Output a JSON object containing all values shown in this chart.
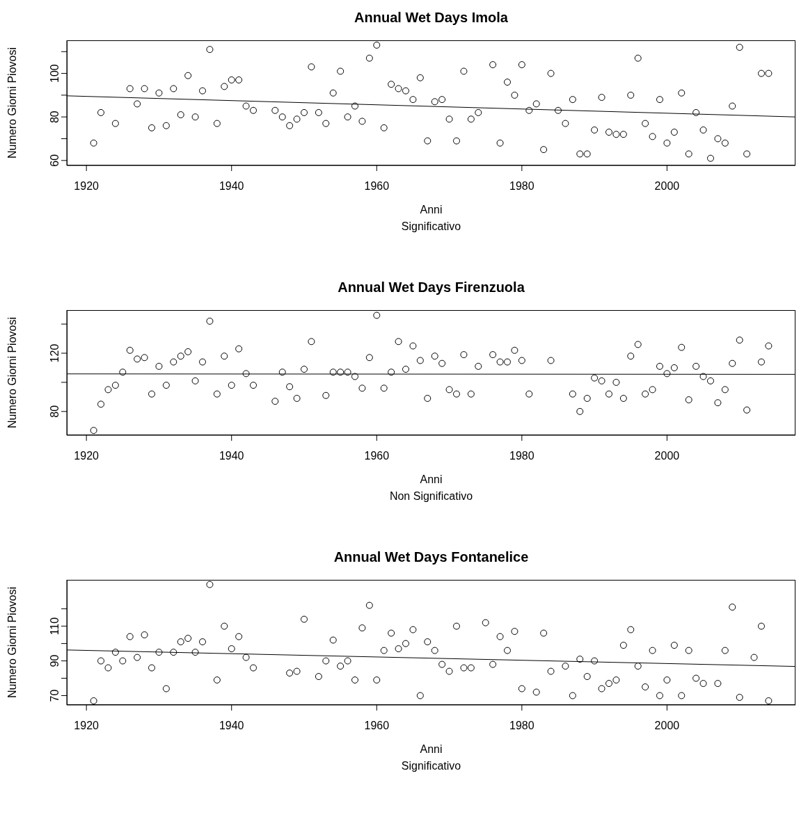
{
  "chart_data": [
    {
      "type": "scatter",
      "title": "Annual Wet Days Imola",
      "xlabel": "Anni",
      "subtitle": "Significativo",
      "ylabel": "Numero Giorni Piovosi",
      "xlim": [
        1917.3,
        2017.7
      ],
      "xticks": [
        1920,
        1940,
        1960,
        1980,
        2000
      ],
      "ylim": [
        57.7,
        115.2
      ],
      "yticks": [
        60,
        {
          "value": 70,
          "label": null
        },
        80,
        {
          "value": 90,
          "label": null
        },
        100,
        {
          "value": 110,
          "label": null
        }
      ],
      "series": [
        {
          "marker": "circle",
          "color": "#000000",
          "x": [
            1921,
            1922,
            1924,
            1926,
            1927,
            1928,
            1929,
            1930,
            1931,
            1932,
            1933,
            1934,
            1935,
            1936,
            1937,
            1938,
            1939,
            1940,
            1941,
            1942,
            1943,
            1946,
            1947,
            1948,
            1949,
            1950,
            1951,
            1952,
            1953,
            1954,
            1955,
            1956,
            1957,
            1958,
            1959,
            1960,
            1961,
            1962,
            1963,
            1964,
            1965,
            1966,
            1967,
            1968,
            1969,
            1970,
            1971,
            1972,
            1973,
            1974,
            1976,
            1977,
            1978,
            1979,
            1980,
            1981,
            1982,
            1983,
            1984,
            1985,
            1986,
            1987,
            1988,
            1989,
            1990,
            1991,
            1992,
            1993,
            1994,
            1995,
            1996,
            1997,
            1998,
            1999,
            2000,
            2001,
            2002,
            2003,
            2004,
            2005,
            2006,
            2007,
            2008,
            2009,
            2010,
            2011,
            2013,
            2014
          ],
          "values": [
            68,
            82,
            77,
            93,
            86,
            93,
            75,
            91,
            76,
            93,
            81,
            99,
            80,
            92,
            111,
            77,
            94,
            97,
            97,
            85,
            83,
            83,
            80,
            76,
            79,
            82,
            103,
            82,
            77,
            91,
            101,
            80,
            85,
            78,
            107,
            113,
            75,
            95,
            93,
            92,
            88,
            98,
            69,
            87,
            88,
            79,
            69,
            101,
            79,
            82,
            104,
            68,
            96,
            90,
            104,
            83,
            86,
            65,
            100,
            83,
            77,
            88,
            63,
            63,
            74,
            89,
            73,
            72,
            72,
            90,
            107,
            77,
            71,
            88,
            68,
            73,
            91,
            63,
            82,
            74,
            61,
            70,
            68,
            85,
            112,
            63,
            100,
            100
          ]
        },
        {
          "type": "line",
          "color": "#000000",
          "x": [
            1917.3,
            2017.7
          ],
          "values": [
            89.7,
            80
          ]
        }
      ]
    },
    {
      "type": "scatter",
      "title": "Annual Wet Days Firenzuola",
      "xlabel": "Anni",
      "subtitle": "Non Significativo",
      "ylabel": "Numero Giorni Piovosi",
      "xlim": [
        1917.3,
        2017.7
      ],
      "xticks": [
        1920,
        1940,
        1960,
        1980,
        2000
      ],
      "ylim": [
        63.7,
        149.6
      ],
      "yticks": [
        80,
        {
          "value": 100,
          "label": null
        },
        120,
        {
          "value": 140,
          "label": null
        }
      ],
      "series": [
        {
          "marker": "circle",
          "color": "#000000",
          "x": [
            1921,
            1922,
            1923,
            1924,
            1925,
            1926,
            1927,
            1928,
            1929,
            1930,
            1931,
            1932,
            1933,
            1934,
            1935,
            1936,
            1937,
            1938,
            1939,
            1940,
            1941,
            1942,
            1943,
            1946,
            1947,
            1948,
            1949,
            1950,
            1951,
            1953,
            1954,
            1955,
            1956,
            1957,
            1958,
            1959,
            1960,
            1961,
            1962,
            1963,
            1964,
            1965,
            1966,
            1967,
            1968,
            1969,
            1970,
            1971,
            1972,
            1973,
            1974,
            1976,
            1977,
            1978,
            1979,
            1980,
            1981,
            1984,
            1987,
            1988,
            1989,
            1990,
            1991,
            1992,
            1993,
            1994,
            1995,
            1996,
            1997,
            1998,
            1999,
            2000,
            2001,
            2002,
            2003,
            2004,
            2005,
            2006,
            2007,
            2008,
            2009,
            2010,
            2011,
            2013,
            2014
          ],
          "values": [
            67,
            85,
            95,
            98,
            107,
            122,
            116,
            117,
            92,
            111,
            98,
            114,
            118,
            121,
            101,
            114,
            142,
            92,
            118,
            98,
            123,
            106,
            98,
            87,
            107,
            97,
            89,
            109,
            128,
            91,
            107,
            107,
            107,
            104,
            96,
            117,
            146,
            96,
            107,
            128,
            109,
            125,
            115,
            89,
            118,
            113,
            95,
            92,
            119,
            92,
            111,
            119,
            114,
            114,
            122,
            115,
            92,
            115,
            92,
            80,
            89,
            103,
            101,
            92,
            100,
            89,
            118,
            126,
            92,
            95,
            111,
            106,
            110,
            124,
            88,
            111,
            104,
            101,
            86,
            95,
            113,
            129,
            81,
            114,
            125
          ]
        },
        {
          "type": "line",
          "color": "#000000",
          "x": [
            1917.3,
            2017.7
          ],
          "values": [
            105.8,
            105.5
          ]
        }
      ]
    },
    {
      "type": "scatter",
      "title": "Annual Wet Days Fontanelice",
      "xlabel": "Anni",
      "subtitle": "Significativo",
      "ylabel": "Numero Giorni Piovosi",
      "xlim": [
        1917.3,
        2017.7
      ],
      "xticks": [
        1920,
        1940,
        1960,
        1980,
        2000
      ],
      "ylim": [
        64.6,
        136.7
      ],
      "yticks": [
        70,
        {
          "value": 80,
          "label": null
        },
        90,
        {
          "value": 100,
          "label": null
        },
        110,
        {
          "value": 120,
          "label": null
        }
      ],
      "series": [
        {
          "marker": "circle",
          "color": "#000000",
          "x": [
            1921,
            1922,
            1923,
            1924,
            1925,
            1926,
            1927,
            1928,
            1929,
            1930,
            1931,
            1932,
            1933,
            1934,
            1935,
            1936,
            1937,
            1938,
            1939,
            1940,
            1941,
            1942,
            1943,
            1948,
            1949,
            1950,
            1952,
            1953,
            1954,
            1955,
            1956,
            1957,
            1958,
            1959,
            1960,
            1961,
            1962,
            1963,
            1964,
            1965,
            1966,
            1967,
            1968,
            1969,
            1970,
            1971,
            1972,
            1973,
            1975,
            1976,
            1977,
            1978,
            1979,
            1980,
            1982,
            1983,
            1984,
            1986,
            1987,
            1988,
            1989,
            1990,
            1991,
            1992,
            1993,
            1994,
            1995,
            1996,
            1997,
            1998,
            1999,
            2000,
            2001,
            2002,
            2003,
            2004,
            2005,
            2007,
            2008,
            2009,
            2010,
            2012,
            2013,
            2014
          ],
          "values": [
            67,
            90,
            86,
            95,
            90,
            104,
            92,
            105,
            86,
            95,
            74,
            95,
            101,
            103,
            95,
            101,
            134,
            79,
            110,
            97,
            104,
            92,
            86,
            83,
            84,
            114,
            81,
            90,
            102,
            87,
            90,
            79,
            109,
            122,
            79,
            96,
            106,
            97,
            100,
            108,
            70,
            101,
            96,
            88,
            84,
            110,
            86,
            86,
            112,
            88,
            104,
            96,
            107,
            74,
            72,
            106,
            84,
            87,
            70,
            91,
            81,
            90,
            74,
            77,
            79,
            99,
            108,
            87,
            75,
            96,
            70,
            79,
            99,
            70,
            96,
            80,
            77,
            77,
            96,
            121,
            69,
            92,
            110,
            67
          ]
        },
        {
          "type": "line",
          "color": "#000000",
          "x": [
            1917.3,
            2017.7
          ],
          "values": [
            96.3,
            86.8
          ]
        }
      ]
    }
  ]
}
